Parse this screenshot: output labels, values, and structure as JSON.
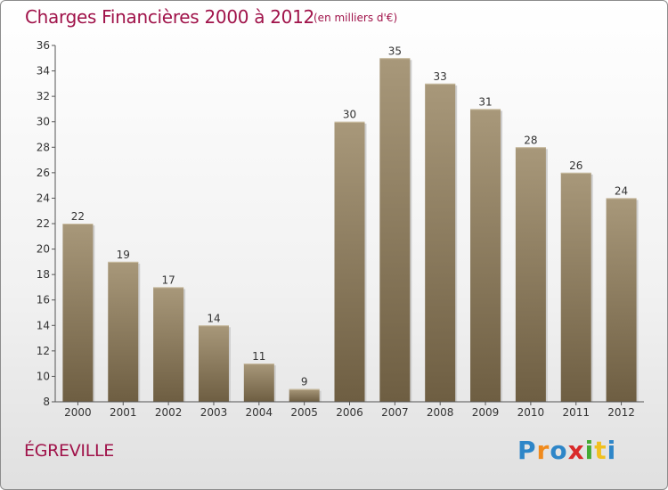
{
  "chart_data": {
    "type": "bar",
    "title": "Charges Financières 2000 à 2012",
    "subtitle": "(en milliers d'€)",
    "categories": [
      "2000",
      "2001",
      "2002",
      "2003",
      "2004",
      "2005",
      "2006",
      "2007",
      "2008",
      "2009",
      "2010",
      "2011",
      "2012"
    ],
    "values": [
      22,
      19,
      17,
      14,
      11,
      9,
      30,
      35,
      33,
      31,
      28,
      26,
      24
    ],
    "ylim": [
      8,
      36
    ],
    "yticks": [
      8,
      10,
      12,
      14,
      16,
      18,
      20,
      22,
      24,
      26,
      28,
      30,
      32,
      34,
      36
    ],
    "grid": false,
    "bar_color_top": "#a8987a",
    "bar_color_bottom": "#6e5e42",
    "xlabel": "",
    "ylabel": ""
  },
  "commune": "ÉGREVILLE",
  "logo": {
    "letters": [
      "P",
      "r",
      "o",
      "x",
      "i",
      "t",
      "i"
    ],
    "colors": [
      "#2e86c8",
      "#f08a1c",
      "#2e86c8",
      "#d92a2a",
      "#44aa33",
      "#f0c020",
      "#2e86c8"
    ]
  },
  "colors": {
    "title": "#a0134a"
  }
}
